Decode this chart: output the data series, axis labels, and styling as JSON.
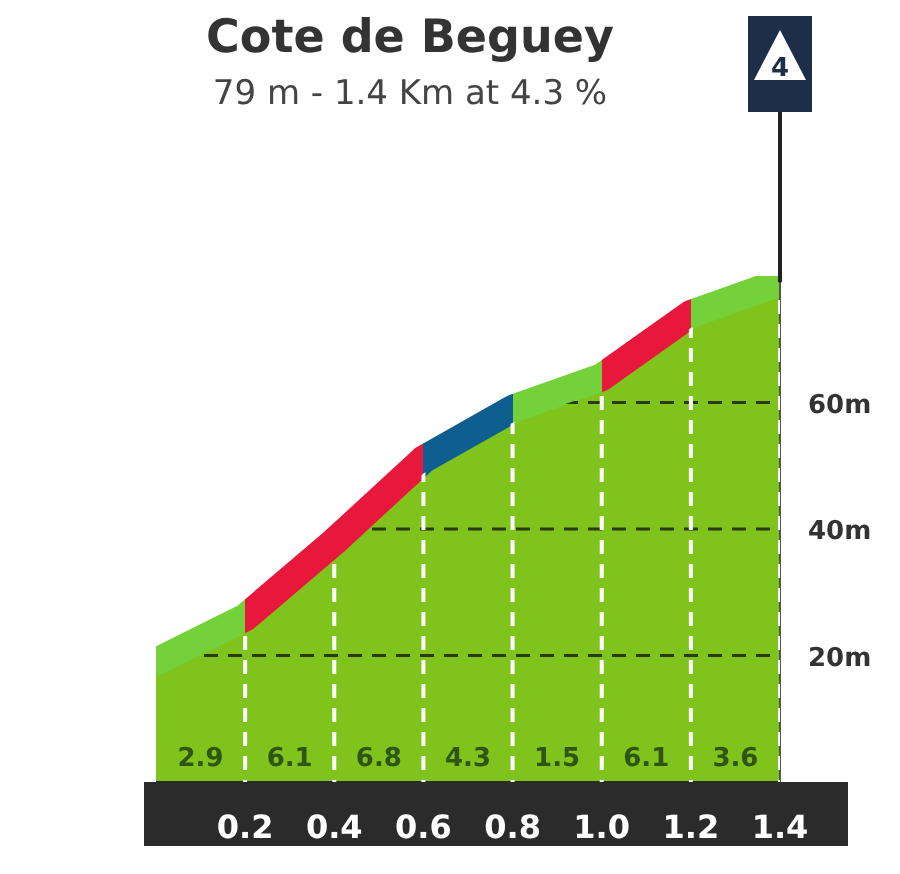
{
  "chart_data": {
    "type": "area",
    "title": "Cote de Beguey",
    "subtitle": "79 m - 1.4 Km at 4.3 %",
    "x": [
      0,
      0.2,
      0.4,
      0.6,
      0.8,
      1.0,
      1.2,
      1.4
    ],
    "values": [
      19,
      26,
      38,
      51,
      59,
      64,
      74,
      79
    ],
    "color": "#7fc31c",
    "colors": [
      "#74d13a",
      "#e8183c",
      "#e8183c",
      "#0e5e8f",
      "#74d13a",
      "#e8183c",
      "#74d13a",
      "#74d13a"
    ],
    "xlim": [
      0,
      1.4
    ],
    "xticks": [
      0.2,
      0.4,
      0.6,
      0.8,
      {
        "value": 1,
        "label": "1.0"
      },
      1.2,
      1.4
    ],
    "ylim": [
      0,
      80
    ],
    "yticks": [
      {
        "value": 20,
        "label": "20m"
      },
      {
        "value": 40,
        "label": "40m"
      },
      {
        "value": 60,
        "label": "60m"
      }
    ],
    "grid": true,
    "annotations": [
      "2.9",
      "6.1",
      "6.8",
      "4.3",
      "1.5",
      "6.1",
      "3.6",
      {
        "text": "4",
        "x": 1.4,
        "y": 79
      }
    ]
  }
}
